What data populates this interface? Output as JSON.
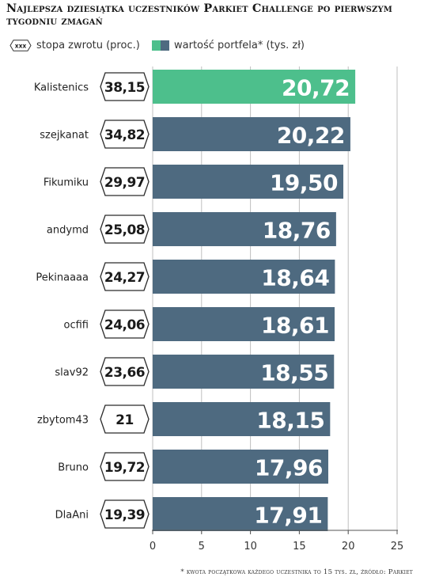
{
  "chart_data": {
    "type": "bar",
    "orientation": "horizontal",
    "title": "Najlepsza dziesiątka uczestników Parkiet Challenge po pierwszym tygodniu zmagań",
    "legend": {
      "badge_sample": "xxx",
      "badge_label": "stopa zwrotu (proc.)",
      "bar_label": "wartość portfela* (tys. zł)",
      "placement": "top-left"
    },
    "categories": [
      "Kalistenics",
      "szejkanat",
      "Fikumiku",
      "andymd",
      "Pekinaaaa",
      "ocfifi",
      "slav92",
      "zbytom43",
      "Bruno",
      "DlaAni"
    ],
    "values": [
      20.72,
      20.22,
      19.5,
      18.76,
      18.64,
      18.61,
      18.55,
      18.15,
      17.96,
      17.91
    ],
    "value_labels": [
      "20,72",
      "20,22",
      "19,50",
      "18,76",
      "18,64",
      "18,61",
      "18,55",
      "18,15",
      "17,96",
      "17,91"
    ],
    "returns": [
      "38,15",
      "34,82",
      "29,97",
      "25,08",
      "24,27",
      "24,06",
      "23,66",
      "21",
      "19,72",
      "19,39"
    ],
    "highlight_index": 0,
    "xlim": [
      0,
      25
    ],
    "xticks": [
      "0",
      "5",
      "10",
      "15",
      "20",
      "25"
    ],
    "grid": true,
    "colors": {
      "bar": "#4e6a80",
      "highlight": "#4dbf8c",
      "grid": "#bfbfbf"
    }
  },
  "footnote": "* kwota początkowa każdego uczestnika to 15 tys. zł, źródło: Parkiet"
}
